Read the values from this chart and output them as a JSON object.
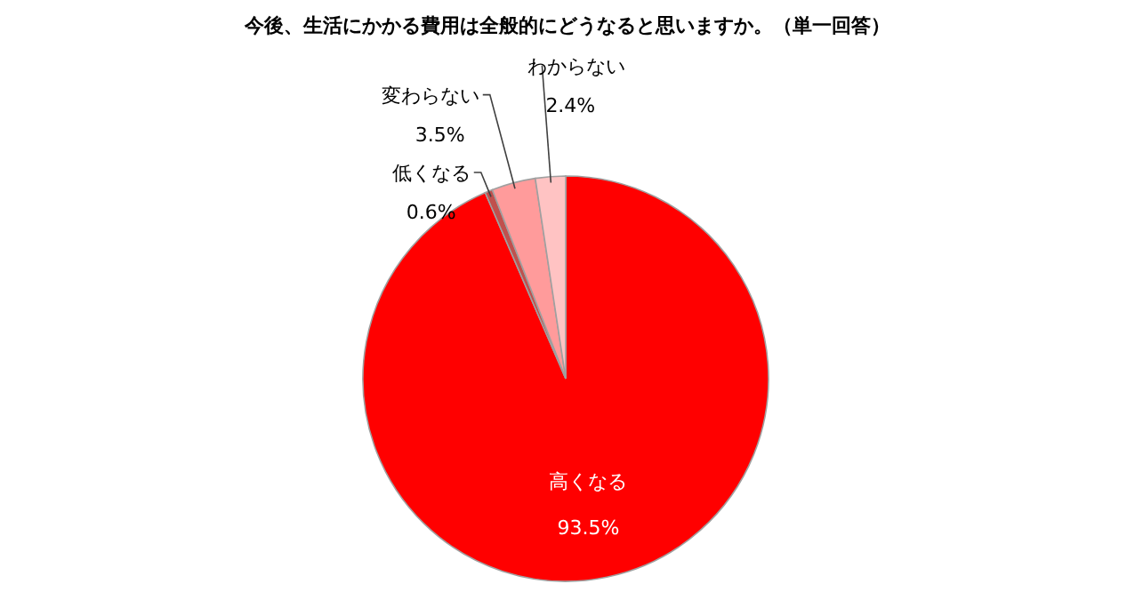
{
  "chart_data": {
    "type": "pie",
    "title": "今後、生活にかかる費用は全般的にどうなると思いますか。（単一回答）",
    "categories": [
      "高くなる",
      "低くなる",
      "変わらない",
      "わからない"
    ],
    "values": [
      93.5,
      0.6,
      3.5,
      2.4
    ],
    "colors": [
      "#ff0000",
      "#c0504d",
      "#ff9b9b",
      "#ffc3c3"
    ],
    "value_labels": [
      "93.5%",
      "0.6%",
      "3.5%",
      "2.4%"
    ]
  }
}
